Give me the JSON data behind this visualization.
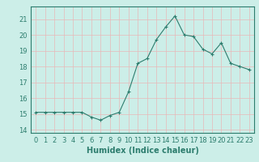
{
  "x": [
    0,
    1,
    2,
    3,
    4,
    5,
    6,
    7,
    8,
    9,
    10,
    11,
    12,
    13,
    14,
    15,
    16,
    17,
    18,
    19,
    20,
    21,
    22,
    23
  ],
  "y": [
    15.1,
    15.1,
    15.1,
    15.1,
    15.1,
    15.1,
    14.8,
    14.6,
    14.9,
    15.1,
    16.4,
    18.2,
    18.5,
    19.7,
    20.5,
    21.2,
    20.0,
    19.9,
    19.1,
    18.8,
    19.5,
    18.2,
    18.0,
    17.8
  ],
  "line_color": "#2d7d6e",
  "marker": "+",
  "marker_size": 3,
  "bg_color": "#cceee8",
  "grid_color": "#b0d8d0",
  "grid_color_minor": "#e8b0b0",
  "axis_color": "#2d7d6e",
  "xlabel": "Humidex (Indice chaleur)",
  "xlim": [
    -0.5,
    23.5
  ],
  "ylim": [
    13.8,
    21.8
  ],
  "yticks": [
    14,
    15,
    16,
    17,
    18,
    19,
    20,
    21
  ],
  "xticks": [
    0,
    1,
    2,
    3,
    4,
    5,
    6,
    7,
    8,
    9,
    10,
    11,
    12,
    13,
    14,
    15,
    16,
    17,
    18,
    19,
    20,
    21,
    22,
    23
  ],
  "xlabel_fontsize": 7,
  "tick_fontsize": 6,
  "fig_bg_color": "#cceee8",
  "linewidth": 0.8
}
